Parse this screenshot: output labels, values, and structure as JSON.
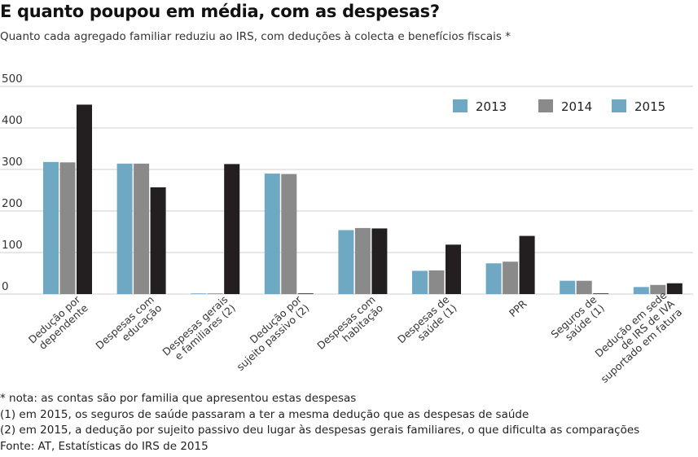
{
  "title": "E quanto poupou em média, com as despesas?",
  "subtitle": "Quanto cada agregado familiar reduziu ao IRS, com deduções à colecta e benefícios fiscais *",
  "notes": [
    "* nota: as contas são por familia que apresentou estas despesas",
    "(1) em 2015, os seguros de saúde passaram a ter a mesma dedução que as despesas de saúde",
    "(2) em 2015, a dedução por sujeito passivo deu lugar às despesas gerais familiares, o que dificulta as comparações",
    "Fonte: AT, Estatísticas do IRS de 2015"
  ],
  "colors": {
    "2013": "#6fa8c3",
    "2014": "#8a8a8a",
    "2015": "#231f20",
    "legend_2015": "#6fa8c3",
    "grid": "#cfcfcf"
  },
  "chart_data": {
    "type": "bar",
    "categories": [
      [
        "Dedução por",
        "dependente"
      ],
      [
        "Despesas com",
        "educação"
      ],
      [
        "Despesas gerais",
        "e familiares (2)"
      ],
      [
        "Dedução por",
        "sujeito passivo (2)"
      ],
      [
        "Despesas com",
        "habitação"
      ],
      [
        "Despesas de",
        "saúde (1)"
      ],
      [
        "PPR"
      ],
      [
        "Seguros de",
        "saúde (1)"
      ],
      [
        "Dedução em sede",
        "de IRS de IVA",
        "suportado em fatura"
      ]
    ],
    "series": [
      {
        "name": "2013",
        "values": [
          318,
          314,
          0,
          290,
          154,
          56,
          74,
          32,
          17
        ]
      },
      {
        "name": "2014",
        "values": [
          317,
          314,
          0,
          289,
          159,
          57,
          78,
          32,
          22
        ]
      },
      {
        "name": "2015",
        "values": [
          456,
          257,
          313,
          0,
          158,
          119,
          140,
          0,
          26
        ]
      }
    ],
    "y_ticks": [
      "0",
      "100",
      "200",
      "300",
      "400",
      "500"
    ],
    "ylim": [
      0,
      500
    ],
    "grid": true,
    "legend_position": "top-right",
    "xlabel": "",
    "ylabel": ""
  }
}
